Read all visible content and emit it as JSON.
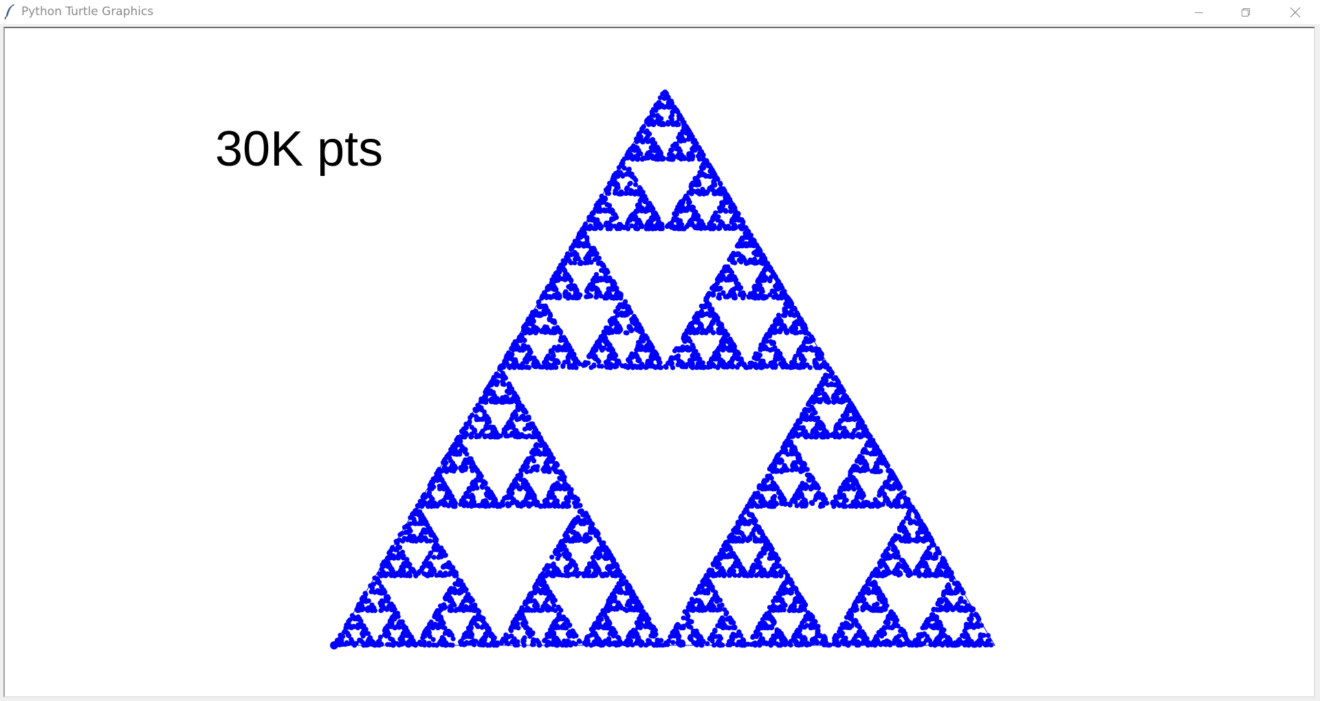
{
  "window": {
    "title": "Python Turtle Graphics",
    "icons": {
      "app": "feather-icon",
      "minimize": "minimize-icon",
      "maximize": "restore-icon",
      "close": "close-icon"
    }
  },
  "canvas": {
    "label": "30K pts",
    "background": "#ffffff",
    "point_color": "#0000ff",
    "text_color": "#000000"
  }
}
